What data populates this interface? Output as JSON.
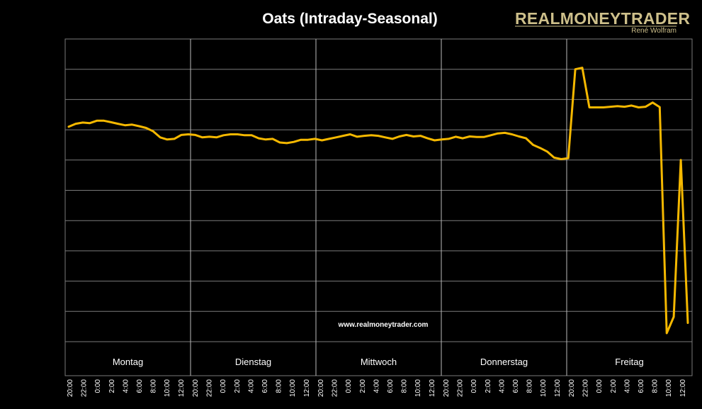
{
  "chart_data": {
    "type": "line",
    "title": "Oats (Intraday-Seasonal)",
    "xlabel": "",
    "ylabel": "",
    "ylim": [
      0,
      10
    ],
    "days": [
      "Montag",
      "Dienstag",
      "Mittwoch",
      "Donnerstag",
      "Freitag"
    ],
    "tick_labels": [
      "20:00",
      "22:00",
      "0:00",
      "2:00",
      "4:00",
      "6:00",
      "8:00",
      "10:00",
      "12:00"
    ],
    "series": [
      {
        "name": "Oats",
        "color": "#f5b800",
        "values": [
          7.1,
          7.2,
          7.24,
          7.22,
          7.3,
          7.3,
          7.25,
          7.2,
          7.15,
          7.17,
          7.12,
          7.06,
          6.95,
          6.75,
          6.68,
          6.7,
          6.83,
          6.85,
          6.83,
          6.75,
          6.77,
          6.75,
          6.82,
          6.85,
          6.85,
          6.82,
          6.82,
          6.72,
          6.68,
          6.7,
          6.58,
          6.56,
          6.6,
          6.67,
          6.67,
          6.7,
          6.65,
          6.7,
          6.75,
          6.8,
          6.85,
          6.77,
          6.8,
          6.82,
          6.8,
          6.75,
          6.7,
          6.78,
          6.83,
          6.78,
          6.8,
          6.72,
          6.65,
          6.68,
          6.7,
          6.77,
          6.72,
          6.78,
          6.76,
          6.76,
          6.82,
          6.88,
          6.9,
          6.85,
          6.78,
          6.72,
          6.5,
          6.4,
          6.28,
          6.08,
          6.03,
          6.06,
          9.0,
          9.05,
          7.74,
          7.74,
          7.74,
          7.76,
          7.78,
          7.76,
          7.8,
          7.74,
          7.76,
          7.9,
          7.75,
          0.28,
          0.82,
          6.0,
          0.62
        ]
      }
    ],
    "watermark": "www.realmoneytrader.com"
  },
  "logo": {
    "name": "REALMONEYTRADER",
    "author": "René Wolfram"
  },
  "colors": {
    "background": "#000000",
    "line": "#f5b800",
    "grid": "#7a7a7a",
    "logo": "#cdbf8a"
  }
}
